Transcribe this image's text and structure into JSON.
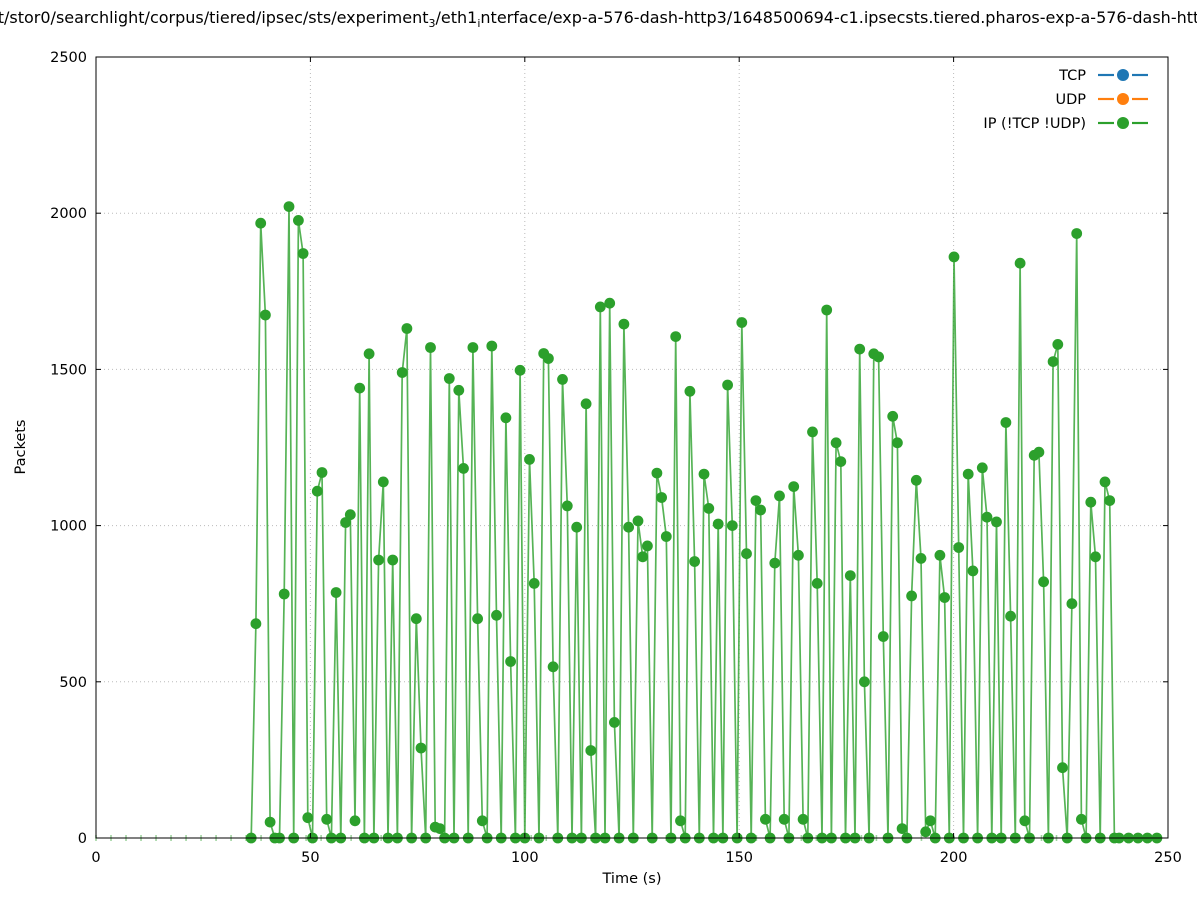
{
  "figure": {
    "title": {
      "part1": "t/stor0/searchlight/corpus/tiered/ipsec/sts/experiment",
      "sub1": "3",
      "part2": "/eth1",
      "sub2": "i",
      "part3": "nterface/exp-a-576-dash-http3/1648500694-c1.ipsecsts.tiered.pharos-exp-a-576-dash-htt"
    },
    "xlabel": "Time (s)",
    "ylabel": "Packets"
  },
  "legend": {
    "entries": [
      {
        "label": "TCP",
        "color": "#1f77b4"
      },
      {
        "label": "UDP",
        "color": "#ff7f0e"
      },
      {
        "label": "IP (!TCP  !UDP)",
        "color": "#2ca02c"
      }
    ]
  },
  "chart_data": {
    "type": "line",
    "title": "t/stor0/searchlight/corpus/tiered/ipsec/sts/experiment_3/eth1_interface/exp-a-576-dash-http3/1648500694-c1.ipsecsts.tiered.pharos-exp-a-576-dash-htt",
    "xlabel": "Time (s)",
    "ylabel": "Packets",
    "xlim": [
      0,
      250
    ],
    "ylim": [
      0,
      2500
    ],
    "xticks": [
      0,
      50,
      100,
      150,
      200,
      250
    ],
    "yticks": [
      0,
      500,
      1000,
      1500,
      2000,
      2500
    ],
    "grid": true,
    "legend_position": "upper right",
    "marker": "circle",
    "baseline_marks": {
      "start": 0,
      "end": 247,
      "step": 3.5
    },
    "series": [
      {
        "name": "TCP",
        "color": "#1f77b4",
        "points": []
      },
      {
        "name": "UDP",
        "color": "#ff7f0e",
        "points": []
      },
      {
        "name": "IP (!TCP  !UDP)",
        "color": "#2ca02c",
        "points": [
          [
            36.2,
            0
          ],
          [
            37.3,
            686
          ],
          [
            38.4,
            1968
          ],
          [
            39.5,
            1674
          ],
          [
            40.6,
            51
          ],
          [
            41.7,
            0
          ],
          [
            42.8,
            0
          ],
          [
            43.9,
            781
          ],
          [
            45.0,
            2021
          ],
          [
            46.1,
            0
          ],
          [
            47.2,
            1977
          ],
          [
            48.3,
            1871
          ],
          [
            49.4,
            65
          ],
          [
            50.5,
            0
          ],
          [
            51.6,
            1110
          ],
          [
            52.7,
            1170
          ],
          [
            53.8,
            60
          ],
          [
            54.9,
            0
          ],
          [
            56.0,
            786
          ],
          [
            57.1,
            0
          ],
          [
            58.2,
            1010
          ],
          [
            59.3,
            1035
          ],
          [
            60.4,
            55
          ],
          [
            61.5,
            1440
          ],
          [
            62.6,
            0
          ],
          [
            63.7,
            1550
          ],
          [
            64.8,
            0
          ],
          [
            65.9,
            890
          ],
          [
            67.0,
            1140
          ],
          [
            68.1,
            0
          ],
          [
            69.2,
            890
          ],
          [
            70.3,
            0
          ],
          [
            71.4,
            1490
          ],
          [
            72.5,
            1631
          ],
          [
            73.6,
            0
          ],
          [
            74.7,
            702
          ],
          [
            75.8,
            288
          ],
          [
            76.9,
            0
          ],
          [
            78.0,
            1570
          ],
          [
            79.1,
            35
          ],
          [
            80.2,
            30
          ],
          [
            81.3,
            0
          ],
          [
            82.4,
            1471
          ],
          [
            83.5,
            0
          ],
          [
            84.6,
            1433
          ],
          [
            85.7,
            1183
          ],
          [
            86.8,
            0
          ],
          [
            87.9,
            1570
          ],
          [
            89.0,
            702
          ],
          [
            90.1,
            55
          ],
          [
            91.2,
            0
          ],
          [
            92.3,
            1575
          ],
          [
            93.4,
            713
          ],
          [
            94.5,
            0
          ],
          [
            95.6,
            1345
          ],
          [
            96.7,
            565
          ],
          [
            97.8,
            0
          ],
          [
            98.9,
            1497
          ],
          [
            100.0,
            0
          ],
          [
            101.1,
            1212
          ],
          [
            102.2,
            815
          ],
          [
            103.3,
            0
          ],
          [
            104.4,
            1551
          ],
          [
            105.5,
            1535
          ],
          [
            106.6,
            548
          ],
          [
            107.7,
            0
          ],
          [
            108.8,
            1468
          ],
          [
            109.9,
            1063
          ],
          [
            111.0,
            0
          ],
          [
            112.1,
            995
          ],
          [
            113.2,
            0
          ],
          [
            114.3,
            1390
          ],
          [
            115.4,
            280
          ],
          [
            116.5,
            0
          ],
          [
            117.6,
            1700
          ],
          [
            118.7,
            0
          ],
          [
            119.8,
            1712
          ],
          [
            120.9,
            370
          ],
          [
            122.0,
            0
          ],
          [
            123.1,
            1645
          ],
          [
            124.2,
            995
          ],
          [
            125.3,
            0
          ],
          [
            126.4,
            1015
          ],
          [
            127.5,
            900
          ],
          [
            128.6,
            935
          ],
          [
            129.7,
            0
          ],
          [
            130.8,
            1168
          ],
          [
            131.9,
            1090
          ],
          [
            133.0,
            965
          ],
          [
            134.1,
            0
          ],
          [
            135.2,
            1605
          ],
          [
            136.3,
            55
          ],
          [
            137.4,
            0
          ],
          [
            138.5,
            1430
          ],
          [
            139.6,
            885
          ],
          [
            140.7,
            0
          ],
          [
            141.8,
            1165
          ],
          [
            142.9,
            1055
          ],
          [
            144.0,
            0
          ],
          [
            145.1,
            1005
          ],
          [
            146.2,
            0
          ],
          [
            147.3,
            1450
          ],
          [
            148.4,
            1000
          ],
          [
            149.5,
            0
          ],
          [
            150.6,
            1650
          ],
          [
            151.7,
            910
          ],
          [
            152.8,
            0
          ],
          [
            153.9,
            1080
          ],
          [
            155.0,
            1050
          ],
          [
            156.1,
            60
          ],
          [
            157.2,
            0
          ],
          [
            158.3,
            880
          ],
          [
            159.4,
            1095
          ],
          [
            160.5,
            60
          ],
          [
            161.6,
            0
          ],
          [
            162.7,
            1125
          ],
          [
            163.8,
            905
          ],
          [
            164.9,
            60
          ],
          [
            166.0,
            0
          ],
          [
            167.1,
            1300
          ],
          [
            168.2,
            815
          ],
          [
            169.3,
            0
          ],
          [
            170.4,
            1690
          ],
          [
            171.5,
            0
          ],
          [
            172.6,
            1265
          ],
          [
            173.7,
            1205
          ],
          [
            174.8,
            0
          ],
          [
            175.9,
            840
          ],
          [
            177.0,
            0
          ],
          [
            178.1,
            1565
          ],
          [
            179.2,
            500
          ],
          [
            180.3,
            0
          ],
          [
            181.4,
            1550
          ],
          [
            182.5,
            1540
          ],
          [
            183.6,
            645
          ],
          [
            184.7,
            0
          ],
          [
            185.8,
            1350
          ],
          [
            186.9,
            1265
          ],
          [
            188.0,
            30
          ],
          [
            189.1,
            0
          ],
          [
            190.2,
            775
          ],
          [
            191.3,
            1145
          ],
          [
            192.4,
            895
          ],
          [
            193.5,
            20
          ],
          [
            194.6,
            55
          ],
          [
            195.7,
            0
          ],
          [
            196.8,
            905
          ],
          [
            197.9,
            770
          ],
          [
            199.0,
            0
          ],
          [
            200.1,
            1860
          ],
          [
            201.2,
            930
          ],
          [
            202.3,
            0
          ],
          [
            203.4,
            1165
          ],
          [
            204.5,
            855
          ],
          [
            205.6,
            0
          ],
          [
            206.7,
            1185
          ],
          [
            207.8,
            1027
          ],
          [
            208.9,
            0
          ],
          [
            210.0,
            1012
          ],
          [
            211.1,
            0
          ],
          [
            212.2,
            1330
          ],
          [
            213.3,
            710
          ],
          [
            214.4,
            0
          ],
          [
            215.5,
            1840
          ],
          [
            216.6,
            55
          ],
          [
            217.7,
            0
          ],
          [
            218.8,
            1225
          ],
          [
            219.9,
            1235
          ],
          [
            221.0,
            820
          ],
          [
            222.1,
            0
          ],
          [
            223.2,
            1525
          ],
          [
            224.3,
            1580
          ],
          [
            225.4,
            225
          ],
          [
            226.5,
            0
          ],
          [
            227.6,
            750
          ],
          [
            228.7,
            1935
          ],
          [
            229.8,
            60
          ],
          [
            230.9,
            0
          ],
          [
            232.0,
            1075
          ],
          [
            233.1,
            900
          ],
          [
            234.2,
            0
          ],
          [
            235.3,
            1140
          ],
          [
            236.4,
            1080
          ],
          [
            237.5,
            0
          ],
          [
            238.6,
            0
          ],
          [
            240.8,
            0
          ],
          [
            243.0,
            0
          ],
          [
            245.2,
            0
          ],
          [
            247.4,
            0
          ]
        ]
      }
    ]
  }
}
